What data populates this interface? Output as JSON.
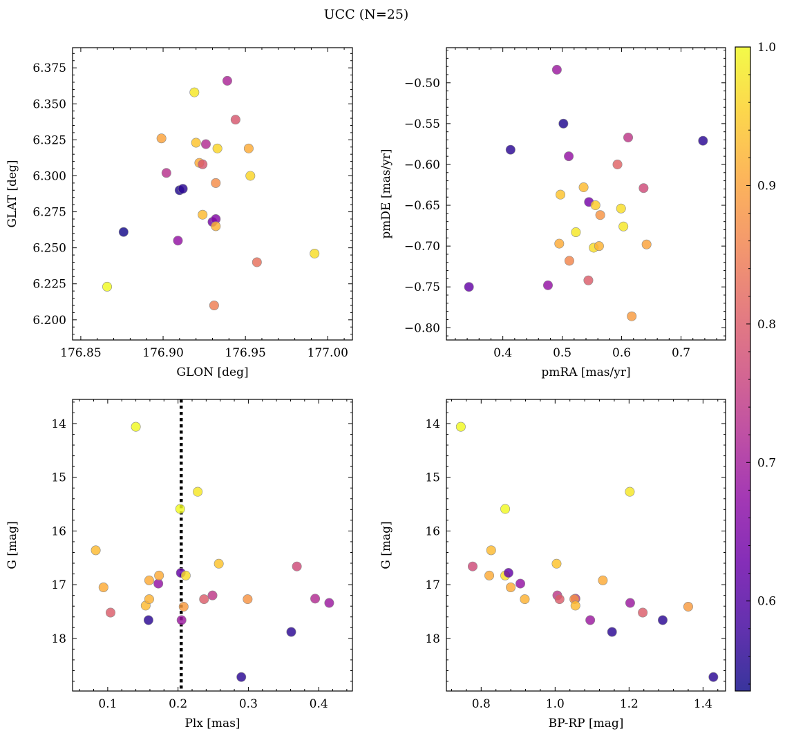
{
  "title": "UCC (N=25)",
  "colorbar": {
    "range": [
      0.535,
      1.0
    ],
    "ticks": [
      0.6,
      0.7,
      0.8,
      0.9,
      1.0
    ],
    "tick_labels": [
      "0.6",
      "0.7",
      "0.8",
      "0.9",
      "1.0"
    ],
    "colormap": "plasma"
  },
  "chart_data": [
    {
      "type": "scatter",
      "id": "glon-glat",
      "xlabel": "GLON [deg]",
      "ylabel": "GLAT [deg]",
      "xlim": [
        176.845,
        177.015
      ],
      "ylim": [
        6.186,
        6.389
      ],
      "xticks": [
        176.85,
        176.9,
        176.95,
        177.0
      ],
      "xtick_labels": [
        "176.85",
        "176.90",
        "176.95",
        "177.00"
      ],
      "yticks": [
        6.2,
        6.225,
        6.25,
        6.275,
        6.3,
        6.325,
        6.35,
        6.375
      ],
      "ytick_labels": [
        "6.200",
        "6.225",
        "6.250",
        "6.275",
        "6.300",
        "6.325",
        "6.350",
        "6.375"
      ],
      "points": [
        {
          "x": 176.866,
          "y": 6.223,
          "c": 1.0
        },
        {
          "x": 176.876,
          "y": 6.261,
          "c": 0.54
        },
        {
          "x": 176.899,
          "y": 6.326,
          "c": 0.9
        },
        {
          "x": 176.902,
          "y": 6.302,
          "c": 0.73
        },
        {
          "x": 176.909,
          "y": 6.255,
          "c": 0.68
        },
        {
          "x": 176.91,
          "y": 6.29,
          "c": 0.55
        },
        {
          "x": 176.912,
          "y": 6.291,
          "c": 0.56
        },
        {
          "x": 176.919,
          "y": 6.358,
          "c": 0.98
        },
        {
          "x": 176.92,
          "y": 6.323,
          "c": 0.94
        },
        {
          "x": 176.922,
          "y": 6.309,
          "c": 0.91
        },
        {
          "x": 176.924,
          "y": 6.308,
          "c": 0.79
        },
        {
          "x": 176.924,
          "y": 6.273,
          "c": 0.93
        },
        {
          "x": 176.926,
          "y": 6.322,
          "c": 0.72
        },
        {
          "x": 176.93,
          "y": 6.268,
          "c": 0.64
        },
        {
          "x": 176.931,
          "y": 6.21,
          "c": 0.85
        },
        {
          "x": 176.932,
          "y": 6.27,
          "c": 0.66
        },
        {
          "x": 176.932,
          "y": 6.265,
          "c": 0.92
        },
        {
          "x": 176.932,
          "y": 6.295,
          "c": 0.87
        },
        {
          "x": 176.933,
          "y": 6.319,
          "c": 0.96
        },
        {
          "x": 176.939,
          "y": 6.366,
          "c": 0.71
        },
        {
          "x": 176.944,
          "y": 6.339,
          "c": 0.79
        },
        {
          "x": 176.952,
          "y": 6.319,
          "c": 0.91
        },
        {
          "x": 176.953,
          "y": 6.3,
          "c": 0.96
        },
        {
          "x": 176.957,
          "y": 6.24,
          "c": 0.83
        },
        {
          "x": 176.992,
          "y": 6.246,
          "c": 0.97
        }
      ]
    },
    {
      "type": "scatter",
      "id": "pmra-pmde",
      "xlabel": "pmRA [mas/yr]",
      "ylabel": "pmDE [mas/yr]",
      "xlim": [
        0.305,
        0.775
      ],
      "ylim": [
        -0.815,
        -0.457
      ],
      "xticks": [
        0.4,
        0.5,
        0.6,
        0.7
      ],
      "xtick_labels": [
        "0.4",
        "0.5",
        "0.6",
        "0.7"
      ],
      "yticks": [
        -0.8,
        -0.75,
        -0.7,
        -0.65,
        -0.6,
        -0.55,
        -0.5
      ],
      "ytick_labels": [
        "−0.80",
        "−0.75",
        "−0.70",
        "−0.65",
        "−0.60",
        "−0.55",
        "−0.50"
      ],
      "points": [
        {
          "x": 0.343,
          "y": -0.75,
          "c": 0.62
        },
        {
          "x": 0.413,
          "y": -0.582,
          "c": 0.56
        },
        {
          "x": 0.476,
          "y": -0.748,
          "c": 0.68
        },
        {
          "x": 0.491,
          "y": -0.484,
          "c": 0.69
        },
        {
          "x": 0.495,
          "y": -0.697,
          "c": 0.91
        },
        {
          "x": 0.497,
          "y": -0.637,
          "c": 0.94
        },
        {
          "x": 0.502,
          "y": -0.55,
          "c": 0.55
        },
        {
          "x": 0.511,
          "y": -0.59,
          "c": 0.68
        },
        {
          "x": 0.512,
          "y": -0.718,
          "c": 0.86
        },
        {
          "x": 0.523,
          "y": -0.683,
          "c": 0.98
        },
        {
          "x": 0.536,
          "y": -0.628,
          "c": 0.93
        },
        {
          "x": 0.544,
          "y": -0.742,
          "c": 0.8
        },
        {
          "x": 0.545,
          "y": -0.646,
          "c": 0.64
        },
        {
          "x": 0.553,
          "y": -0.702,
          "c": 0.97
        },
        {
          "x": 0.556,
          "y": -0.65,
          "c": 0.95
        },
        {
          "x": 0.562,
          "y": -0.7,
          "c": 0.92
        },
        {
          "x": 0.564,
          "y": -0.662,
          "c": 0.88
        },
        {
          "x": 0.593,
          "y": -0.6,
          "c": 0.81
        },
        {
          "x": 0.599,
          "y": -0.654,
          "c": 0.97
        },
        {
          "x": 0.603,
          "y": -0.676,
          "c": 0.98
        },
        {
          "x": 0.611,
          "y": -0.567,
          "c": 0.74
        },
        {
          "x": 0.617,
          "y": -0.786,
          "c": 0.89
        },
        {
          "x": 0.637,
          "y": -0.629,
          "c": 0.77
        },
        {
          "x": 0.642,
          "y": -0.698,
          "c": 0.9
        },
        {
          "x": 0.737,
          "y": -0.571,
          "c": 0.56
        }
      ]
    },
    {
      "type": "scatter",
      "id": "plx-g",
      "xlabel": "Plx [mas]",
      "ylabel": "G [mag]",
      "xlim": [
        0.05,
        0.448
      ],
      "ylim": [
        18.98,
        13.55
      ],
      "y_inverted": true,
      "xticks": [
        0.1,
        0.2,
        0.3,
        0.4
      ],
      "xtick_labels": [
        "0.1",
        "0.2",
        "0.3",
        "0.4"
      ],
      "yticks": [
        14,
        15,
        16,
        17,
        18
      ],
      "ytick_labels": [
        "14",
        "15",
        "16",
        "17",
        "18"
      ],
      "vline": {
        "x": 0.2045,
        "style": "dotted",
        "color": "#000000"
      },
      "points": [
        {
          "x": 0.083,
          "y": 16.36,
          "c": 0.93
        },
        {
          "x": 0.094,
          "y": 17.05,
          "c": 0.91
        },
        {
          "x": 0.104,
          "y": 17.52,
          "c": 0.8
        },
        {
          "x": 0.14,
          "y": 14.06,
          "c": 1.0
        },
        {
          "x": 0.154,
          "y": 17.39,
          "c": 0.93
        },
        {
          "x": 0.158,
          "y": 17.66,
          "c": 0.56
        },
        {
          "x": 0.159,
          "y": 16.92,
          "c": 0.91
        },
        {
          "x": 0.159,
          "y": 17.27,
          "c": 0.92
        },
        {
          "x": 0.172,
          "y": 16.98,
          "c": 0.68
        },
        {
          "x": 0.173,
          "y": 16.83,
          "c": 0.91
        },
        {
          "x": 0.203,
          "y": 15.59,
          "c": 1.0
        },
        {
          "x": 0.204,
          "y": 16.78,
          "c": 0.62
        },
        {
          "x": 0.205,
          "y": 17.66,
          "c": 0.69
        },
        {
          "x": 0.208,
          "y": 17.41,
          "c": 0.89
        },
        {
          "x": 0.211,
          "y": 16.83,
          "c": 0.97
        },
        {
          "x": 0.228,
          "y": 15.27,
          "c": 0.98
        },
        {
          "x": 0.237,
          "y": 17.27,
          "c": 0.8
        },
        {
          "x": 0.249,
          "y": 17.2,
          "c": 0.74
        },
        {
          "x": 0.258,
          "y": 16.61,
          "c": 0.94
        },
        {
          "x": 0.29,
          "y": 18.72,
          "c": 0.56
        },
        {
          "x": 0.299,
          "y": 17.27,
          "c": 0.88
        },
        {
          "x": 0.361,
          "y": 17.88,
          "c": 0.56
        },
        {
          "x": 0.369,
          "y": 16.66,
          "c": 0.77
        },
        {
          "x": 0.395,
          "y": 17.26,
          "c": 0.72
        },
        {
          "x": 0.415,
          "y": 17.34,
          "c": 0.69
        }
      ]
    },
    {
      "type": "scatter",
      "id": "bprp-g",
      "xlabel": "BP-RP [mag]",
      "ylabel": "G [mag]",
      "xlim": [
        0.706,
        1.461
      ],
      "ylim": [
        18.98,
        13.55
      ],
      "y_inverted": true,
      "xticks": [
        0.8,
        1.0,
        1.2,
        1.4
      ],
      "xtick_labels": [
        "0.8",
        "1.0",
        "1.2",
        "1.4"
      ],
      "yticks": [
        14,
        15,
        16,
        17,
        18
      ],
      "ytick_labels": [
        "14",
        "15",
        "16",
        "17",
        "18"
      ],
      "points": [
        {
          "x": 0.745,
          "y": 14.06,
          "c": 1.0
        },
        {
          "x": 0.777,
          "y": 16.66,
          "c": 0.77
        },
        {
          "x": 0.822,
          "y": 16.83,
          "c": 0.91
        },
        {
          "x": 0.827,
          "y": 16.36,
          "c": 0.93
        },
        {
          "x": 0.865,
          "y": 15.59,
          "c": 1.0
        },
        {
          "x": 0.865,
          "y": 16.83,
          "c": 0.97
        },
        {
          "x": 0.874,
          "y": 16.78,
          "c": 0.62
        },
        {
          "x": 0.88,
          "y": 17.05,
          "c": 0.91
        },
        {
          "x": 0.906,
          "y": 16.98,
          "c": 0.68
        },
        {
          "x": 0.918,
          "y": 17.27,
          "c": 0.92
        },
        {
          "x": 1.004,
          "y": 16.61,
          "c": 0.94
        },
        {
          "x": 1.006,
          "y": 17.2,
          "c": 0.74
        },
        {
          "x": 1.012,
          "y": 17.27,
          "c": 0.8
        },
        {
          "x": 1.055,
          "y": 17.26,
          "c": 0.72
        },
        {
          "x": 1.052,
          "y": 17.27,
          "c": 0.88
        },
        {
          "x": 1.055,
          "y": 17.39,
          "c": 0.93
        },
        {
          "x": 1.095,
          "y": 17.66,
          "c": 0.69
        },
        {
          "x": 1.129,
          "y": 16.92,
          "c": 0.91
        },
        {
          "x": 1.154,
          "y": 17.88,
          "c": 0.56
        },
        {
          "x": 1.202,
          "y": 15.27,
          "c": 0.98
        },
        {
          "x": 1.203,
          "y": 17.34,
          "c": 0.69
        },
        {
          "x": 1.237,
          "y": 17.52,
          "c": 0.8
        },
        {
          "x": 1.291,
          "y": 17.66,
          "c": 0.56
        },
        {
          "x": 1.36,
          "y": 17.41,
          "c": 0.89
        },
        {
          "x": 1.428,
          "y": 18.72,
          "c": 0.56
        }
      ]
    }
  ]
}
